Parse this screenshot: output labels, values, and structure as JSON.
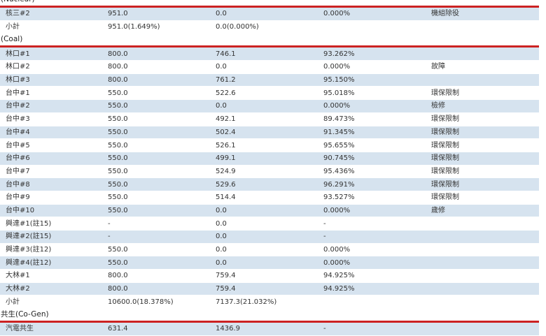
{
  "sections": [
    {
      "title": "(Nuclear)",
      "rows": [
        {
          "unit": "核三#2",
          "capacity": "951.0",
          "output": "0.0",
          "ratio": "0.000%",
          "note": "機組除役"
        }
      ],
      "subtotal": {
        "label": "小計",
        "capacity": "951.0(1.649%)",
        "output": "0.0(0.000%)"
      }
    },
    {
      "title": "(Coal)",
      "rows": [
        {
          "unit": "林口#1",
          "capacity": "800.0",
          "output": "746.1",
          "ratio": "93.262%",
          "note": ""
        },
        {
          "unit": "林口#2",
          "capacity": "800.0",
          "output": "0.0",
          "ratio": "0.000%",
          "note": "故障"
        },
        {
          "unit": "林口#3",
          "capacity": "800.0",
          "output": "761.2",
          "ratio": "95.150%",
          "note": ""
        },
        {
          "unit": "台中#1",
          "capacity": "550.0",
          "output": "522.6",
          "ratio": "95.018%",
          "note": "環保限制"
        },
        {
          "unit": "台中#2",
          "capacity": "550.0",
          "output": "0.0",
          "ratio": "0.000%",
          "note": "檢修"
        },
        {
          "unit": "台中#3",
          "capacity": "550.0",
          "output": "492.1",
          "ratio": "89.473%",
          "note": "環保限制"
        },
        {
          "unit": "台中#4",
          "capacity": "550.0",
          "output": "502.4",
          "ratio": "91.345%",
          "note": "環保限制"
        },
        {
          "unit": "台中#5",
          "capacity": "550.0",
          "output": "526.1",
          "ratio": "95.655%",
          "note": "環保限制"
        },
        {
          "unit": "台中#6",
          "capacity": "550.0",
          "output": "499.1",
          "ratio": "90.745%",
          "note": "環保限制"
        },
        {
          "unit": "台中#7",
          "capacity": "550.0",
          "output": "524.9",
          "ratio": "95.436%",
          "note": "環保限制"
        },
        {
          "unit": "台中#8",
          "capacity": "550.0",
          "output": "529.6",
          "ratio": "96.291%",
          "note": "環保限制"
        },
        {
          "unit": "台中#9",
          "capacity": "550.0",
          "output": "514.4",
          "ratio": "93.527%",
          "note": "環保限制"
        },
        {
          "unit": "台中#10",
          "capacity": "550.0",
          "output": "0.0",
          "ratio": "0.000%",
          "note": "歲修"
        },
        {
          "unit": "興達#1(註15)",
          "capacity": "-",
          "output": "0.0",
          "ratio": "-",
          "note": ""
        },
        {
          "unit": "興達#2(註15)",
          "capacity": "-",
          "output": "0.0",
          "ratio": "-",
          "note": ""
        },
        {
          "unit": "興達#3(註12)",
          "capacity": "550.0",
          "output": "0.0",
          "ratio": "0.000%",
          "note": ""
        },
        {
          "unit": "興達#4(註12)",
          "capacity": "550.0",
          "output": "0.0",
          "ratio": "0.000%",
          "note": ""
        },
        {
          "unit": "大林#1",
          "capacity": "800.0",
          "output": "759.4",
          "ratio": "94.925%",
          "note": ""
        },
        {
          "unit": "大林#2",
          "capacity": "800.0",
          "output": "759.4",
          "ratio": "94.925%",
          "note": ""
        }
      ],
      "subtotal": {
        "label": "小計",
        "capacity": "10600.0(18.378%)",
        "output": "7137.3(21.032%)"
      }
    },
    {
      "title": "共生(Co-Gen)",
      "rows": [
        {
          "unit": "汽電共生",
          "capacity": "631.4",
          "output": "1436.9",
          "ratio": "-",
          "note": ""
        }
      ]
    }
  ]
}
